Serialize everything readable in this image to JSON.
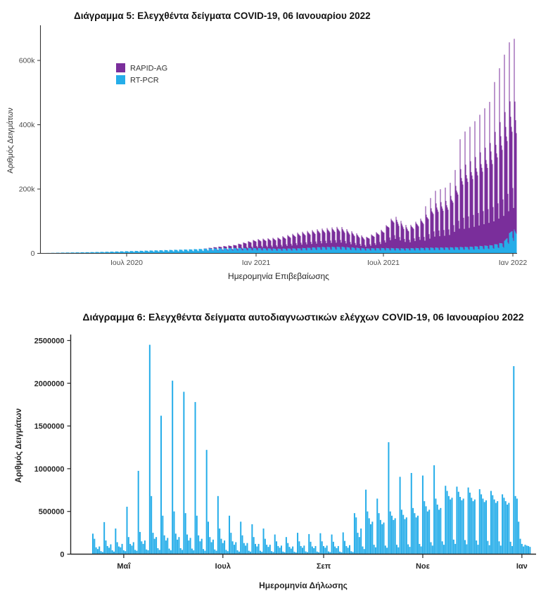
{
  "page": {
    "background": "#ffffff"
  },
  "chart_data": [
    {
      "id": "diagramma-5",
      "type": "bar",
      "stacked": true,
      "title": "Διάγραμμα 5: Ελεγχθέντα δείγματα COVID-19, 06 Ιανουαρίου 2022",
      "xlabel": "Ημερομηνία Επιβεβαίωσης",
      "ylabel": "Αριθμός Δειγμάτων",
      "ylim": [
        0,
        680000
      ],
      "grid": false,
      "legend_position": "inside-top-left",
      "legend": {
        "items": [
          {
            "label": "RAPID-AG",
            "color": "#7A2E9B"
          },
          {
            "label": "RT-PCR",
            "color": "#25ADE9"
          }
        ]
      },
      "y_ticks": [
        {
          "label": "0",
          "value": 0
        },
        {
          "label": "200k",
          "value": 200000
        },
        {
          "label": "400k",
          "value": 400000
        },
        {
          "label": "600k",
          "value": 600000
        }
      ],
      "x_ticks": [
        {
          "label": "Ιουλ 2020",
          "day": 122
        },
        {
          "label": "Ιαν 2021",
          "day": 306
        },
        {
          "label": "Ιουλ 2021",
          "day": 487
        },
        {
          "label": "Ιαν 2022",
          "day": 671
        }
      ],
      "start_date": "2020-03-01",
      "num_days": 677,
      "sampling_note": "daily stacked bars; values approximated as envelope anchors interpolated and multiplied by weekday profile (Mon..Sun)",
      "series": [
        {
          "name": "RT-PCR",
          "color": "#25ADE9",
          "envelope_anchors": [
            [
              0,
              800
            ],
            [
              31,
              2500
            ],
            [
              61,
              3500
            ],
            [
              92,
              5000
            ],
            [
              122,
              7000
            ],
            [
              153,
              9000
            ],
            [
              184,
              11000
            ],
            [
              214,
              13000
            ],
            [
              245,
              16000
            ],
            [
              275,
              17000
            ],
            [
              306,
              17000
            ],
            [
              337,
              15000
            ],
            [
              365,
              16000
            ],
            [
              396,
              20000
            ],
            [
              426,
              21000
            ],
            [
              462,
              16000
            ],
            [
              487,
              17000
            ],
            [
              518,
              16000
            ],
            [
              549,
              18000
            ],
            [
              579,
              19000
            ],
            [
              610,
              21000
            ],
            [
              640,
              26000
            ],
            [
              658,
              35000
            ],
            [
              671,
              80000
            ],
            [
              676,
              65000
            ]
          ],
          "weekday_profiles": [
            {
              "start_day": 0,
              "mon_to_sun": [
                1.0,
                0.97,
                0.95,
                0.93,
                0.9,
                0.6,
                0.5
              ]
            }
          ]
        },
        {
          "name": "RAPID-AG",
          "color": "#7A2E9B",
          "envelope_anchors": [
            [
              0,
              0
            ],
            [
              230,
              0
            ],
            [
              245,
              3000
            ],
            [
              275,
              9000
            ],
            [
              306,
              25000
            ],
            [
              337,
              32000
            ],
            [
              365,
              45000
            ],
            [
              396,
              52000
            ],
            [
              426,
              58000
            ],
            [
              462,
              32000
            ],
            [
              487,
              55000
            ],
            [
              502,
              95000
            ],
            [
              522,
              62000
            ],
            [
              545,
              90000
            ],
            [
              560,
              130000
            ],
            [
              580,
              140000
            ],
            [
              598,
              215000
            ],
            [
              614,
              235000
            ],
            [
              644,
              285000
            ],
            [
              658,
              330000
            ],
            [
              671,
              345000
            ],
            [
              676,
              330000
            ]
          ],
          "weekday_profiles": [
            {
              "start_day": 0,
              "mon_to_sun": [
                1.08,
                1.0,
                0.95,
                0.9,
                0.85,
                0.5,
                0.4
              ]
            },
            {
              "start_day": 545,
              "mon_to_sun": [
                1.35,
                1.05,
                0.95,
                0.9,
                0.85,
                0.45,
                0.33
              ]
            },
            {
              "start_day": 596,
              "mon_to_sun": [
                1.62,
                1.15,
                1.0,
                0.95,
                0.9,
                0.45,
                0.3
              ]
            },
            {
              "start_day": 640,
              "mon_to_sun": [
                1.75,
                1.2,
                1.05,
                0.95,
                0.9,
                0.45,
                0.3
              ]
            }
          ]
        }
      ],
      "notable_values": [
        {
          "date": "2022-01-03",
          "total_samples": 668000
        },
        {
          "date": "2021-12-20",
          "total_samples": 620000
        },
        {
          "date": "2021-10-11",
          "total_samples": 390000
        }
      ]
    },
    {
      "id": "diagramma-6",
      "type": "bar",
      "stacked": false,
      "title": "Διάγραμμα 6: Ελεγχθέντα δείγματα αυτοδιαγνωστικών ελέγχων COVID-19, 06 Ιανουαρίου 2022",
      "xlabel": "Ημερομηνία Δήλωσης",
      "ylabel": "Αριθμός Δειγμάτων",
      "ylim": [
        0,
        2500000
      ],
      "grid": false,
      "bar_color": "#25ADE9",
      "y_ticks": [
        {
          "label": "0",
          "value": 0
        },
        {
          "label": "500000",
          "value": 500000
        },
        {
          "label": "1000000",
          "value": 1000000
        },
        {
          "label": "1500000",
          "value": 1500000
        },
        {
          "label": "2000000",
          "value": 2000000
        },
        {
          "label": "2500000",
          "value": 2500000
        }
      ],
      "x_ticks": [
        {
          "label": "Μαΐ",
          "day": 19
        },
        {
          "label": "Ιουλ",
          "day": 80
        },
        {
          "label": "Σεπ",
          "day": 142
        },
        {
          "label": "Νοε",
          "day": 203
        },
        {
          "label": "Ιαν",
          "day": 264
        }
      ],
      "start_date": "2021-04-12",
      "num_days": 270,
      "value_scale": 1000,
      "sampling_note": "daily bars, values in thousands of samples, weeks run Mon..Sun",
      "daily_values_thousands": [
        240,
        180,
        80,
        60,
        90,
        35,
        25,
        375,
        160,
        95,
        75,
        115,
        45,
        30,
        300,
        140,
        90,
        80,
        120,
        45,
        35,
        555,
        200,
        120,
        100,
        140,
        50,
        40,
        975,
        260,
        150,
        120,
        160,
        55,
        45,
        2450,
        680,
        250,
        180,
        200,
        70,
        50,
        1620,
        450,
        220,
        160,
        190,
        65,
        45,
        2030,
        500,
        240,
        170,
        200,
        70,
        50,
        1900,
        480,
        230,
        160,
        190,
        65,
        45,
        1780,
        450,
        220,
        150,
        180,
        60,
        40,
        1220,
        380,
        200,
        140,
        170,
        55,
        40,
        680,
        300,
        180,
        130,
        160,
        50,
        35,
        450,
        250,
        150,
        110,
        140,
        45,
        30,
        380,
        220,
        130,
        100,
        130,
        40,
        30,
        350,
        200,
        120,
        90,
        120,
        40,
        28,
        300,
        180,
        110,
        85,
        110,
        35,
        25,
        230,
        150,
        95,
        75,
        100,
        30,
        22,
        200,
        130,
        85,
        65,
        90,
        28,
        20,
        250,
        150,
        95,
        75,
        100,
        32,
        24,
        235,
        145,
        90,
        70,
        95,
        30,
        22,
        245,
        150,
        95,
        75,
        100,
        32,
        24,
        230,
        145,
        90,
        70,
        95,
        30,
        22,
        255,
        155,
        95,
        75,
        105,
        34,
        25,
        480,
        430,
        250,
        200,
        300,
        90,
        60,
        755,
        500,
        420,
        350,
        380,
        110,
        80,
        650,
        480,
        400,
        350,
        370,
        100,
        75,
        1310,
        500,
        450,
        400,
        420,
        110,
        80,
        905,
        520,
        460,
        410,
        430,
        115,
        85,
        950,
        540,
        480,
        430,
        450,
        120,
        90,
        920,
        620,
        560,
        500,
        520,
        140,
        100,
        1040,
        650,
        580,
        520,
        540,
        150,
        110,
        800,
        740,
        680,
        640,
        660,
        170,
        120,
        790,
        730,
        670,
        630,
        650,
        165,
        115,
        780,
        720,
        660,
        620,
        640,
        160,
        110,
        760,
        700,
        650,
        610,
        630,
        155,
        105,
        740,
        690,
        640,
        600,
        620,
        150,
        100,
        700,
        660,
        620,
        580,
        600,
        145,
        95,
        2200,
        680,
        650,
        380,
        180,
        120,
        90,
        110,
        100,
        95,
        85
      ],
      "notable_values": [
        {
          "date": "2021-05-17",
          "value": 2450000
        },
        {
          "date": "2021-12-27",
          "value": 2200000
        },
        {
          "date": "2021-05-31",
          "value": 2030000
        },
        {
          "date": "2021-10-11",
          "value": 1310000
        },
        {
          "date": "2021-11-08",
          "value": 1040000
        },
        {
          "date": "2021-05-10",
          "value": 975000
        }
      ]
    }
  ]
}
